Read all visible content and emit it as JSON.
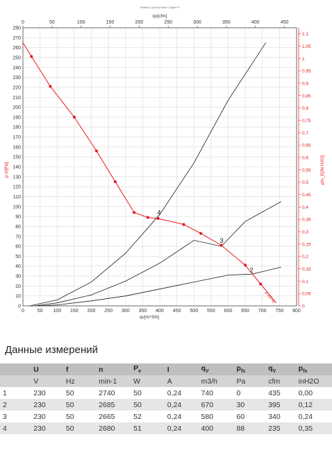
{
  "chart_data": {
    "type": "line",
    "title": "Density:1,1(m3/h) Wave:1,2kg/m^3",
    "xlabel_bottom": "qv[m^3/h]",
    "xlabel_top": "qv[cfm]",
    "ylabel_left": "p sf[Pa]",
    "ylabel_right": "pfs_E[IN H2O]",
    "xlim": [
      0,
      800
    ],
    "ylim": [
      0,
      280
    ],
    "x_ticks_bottom": [
      0,
      50,
      100,
      150,
      200,
      250,
      300,
      350,
      400,
      450,
      500,
      550,
      600,
      650,
      700,
      750,
      800
    ],
    "x_ticks_top": [
      0,
      50,
      100,
      150,
      200,
      250,
      300,
      350,
      400,
      450
    ],
    "y_ticks_left": [
      0,
      10,
      20,
      30,
      40,
      50,
      60,
      70,
      80,
      90,
      100,
      110,
      120,
      130,
      140,
      150,
      160,
      170,
      180,
      190,
      200,
      210,
      220,
      230,
      240,
      250,
      260,
      270,
      280
    ],
    "y_ticks_right": [
      "0",
      "0,05",
      "0,1",
      "0,15",
      "0,2",
      "0,25",
      "0,3",
      "0,35",
      "0,4",
      "0,45",
      "0,5",
      "0,55",
      "0,6",
      "0,65",
      "0,7",
      "0,75",
      "0,8",
      "0,85",
      "0,9",
      "0,95",
      "1",
      "1,05",
      "1,1"
    ],
    "grid": true,
    "colors": {
      "fan_curve": "#e8141b",
      "system": "#1a1a1a",
      "grid": "#d9d9d9",
      "right_axis": "#e8141b"
    },
    "fan_curve": {
      "points": [
        [
          0,
          265
        ],
        [
          25,
          251
        ],
        [
          80,
          221
        ],
        [
          150,
          190
        ],
        [
          215,
          156
        ],
        [
          270,
          125
        ],
        [
          325,
          94
        ],
        [
          365,
          89
        ],
        [
          395,
          88
        ],
        [
          470,
          82
        ],
        [
          520,
          73
        ],
        [
          580,
          61
        ],
        [
          650,
          41
        ],
        [
          695,
          22
        ],
        [
          740,
          3
        ]
      ],
      "markers": [
        [
          25,
          251
        ],
        [
          80,
          221
        ],
        [
          150,
          190
        ],
        [
          215,
          156
        ],
        [
          270,
          125
        ],
        [
          325,
          94
        ],
        [
          365,
          89
        ],
        [
          395,
          88
        ],
        [
          470,
          82
        ],
        [
          520,
          73
        ],
        [
          580,
          61
        ],
        [
          650,
          41
        ],
        [
          695,
          22
        ]
      ],
      "end_label": "p sf(Pa)"
    },
    "system_curves": [
      {
        "label": "4",
        "points": [
          [
            20,
            0
          ],
          [
            100,
            6
          ],
          [
            200,
            24
          ],
          [
            300,
            53
          ],
          [
            400,
            92
          ],
          [
            500,
            144
          ],
          [
            600,
            207
          ],
          [
            710,
            265
          ]
        ],
        "label_at": [
          400,
          91
        ]
      },
      {
        "label": "3",
        "points": [
          [
            35,
            0
          ],
          [
            100,
            3
          ],
          [
            200,
            11
          ],
          [
            300,
            25
          ],
          [
            400,
            43
          ],
          [
            500,
            66
          ],
          [
            580,
            60
          ],
          [
            650,
            85
          ],
          [
            755,
            105
          ]
        ],
        "label_at": [
          583,
          63
        ]
      },
      {
        "label": "2",
        "points": [
          [
            45,
            0
          ],
          [
            100,
            1
          ],
          [
            200,
            5
          ],
          [
            300,
            10
          ],
          [
            400,
            17
          ],
          [
            500,
            24
          ],
          [
            600,
            31
          ],
          [
            670,
            32
          ],
          [
            755,
            39
          ]
        ],
        "label_at": [
          670,
          33
        ]
      }
    ]
  },
  "section": {
    "title": "Данные измерений"
  },
  "table": {
    "headers": [
      "",
      "U",
      "f",
      "n",
      "P",
      "I",
      "q",
      "p",
      "q",
      "p"
    ],
    "header_subs": [
      "",
      "",
      "",
      "",
      "e",
      "",
      "V",
      "fs",
      "V",
      "fs"
    ],
    "units": [
      "",
      "V",
      "Hz",
      "min-1",
      "W",
      "A",
      "m3/h",
      "Pa",
      "cfm",
      "inH2O"
    ],
    "rows": [
      [
        "1",
        "230",
        "50",
        "2740",
        "50",
        "0,24",
        "740",
        "0",
        "435",
        "0,00"
      ],
      [
        "2",
        "230",
        "50",
        "2685",
        "50",
        "0,24",
        "670",
        "30",
        "395",
        "0,12"
      ],
      [
        "3",
        "230",
        "50",
        "2665",
        "52",
        "0,24",
        "580",
        "60",
        "340",
        "0,24"
      ],
      [
        "4",
        "230",
        "50",
        "2680",
        "51",
        "0,24",
        "400",
        "88",
        "235",
        "0,35"
      ]
    ]
  }
}
